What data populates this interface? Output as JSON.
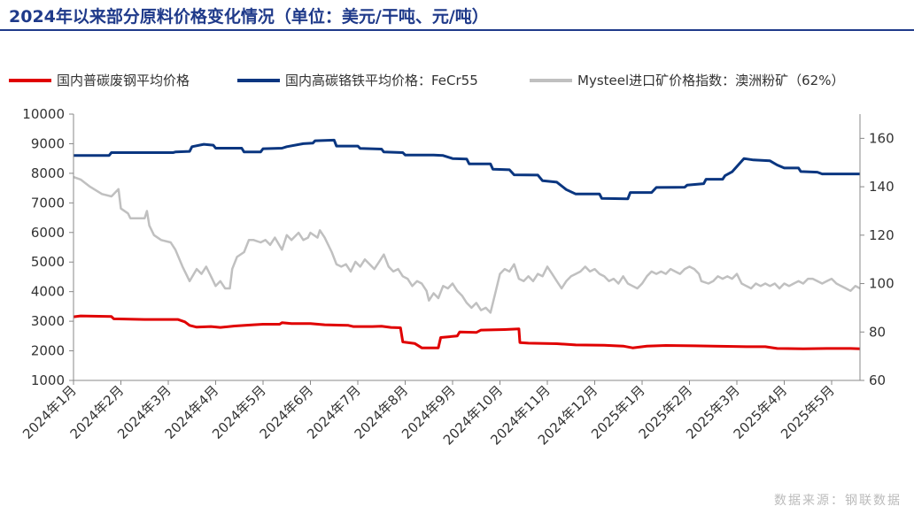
{
  "title": "2024年以来部分原料价格变化情况（单位：美元/干吨、元/吨）",
  "source": "数据来源：钢联数据",
  "chart_data": {
    "type": "line",
    "x_ticks": [
      "2024年1月",
      "2024年2月",
      "2024年3月",
      "2024年4月",
      "2024年5月",
      "2024年6月",
      "2024年7月",
      "2024年8月",
      "2024年9月",
      "2024年10月",
      "2024年11月",
      "2024年12月",
      "2025年1月",
      "2025年2月",
      "2025年3月",
      "2025年4月",
      "2025年5月"
    ],
    "x_range": [
      0,
      16.6
    ],
    "y_left": {
      "range": [
        1000,
        10000
      ],
      "ticks": [
        "1000",
        "2000",
        "3000",
        "4000",
        "5000",
        "6000",
        "7000",
        "8000",
        "9000",
        "10000"
      ]
    },
    "y_right": {
      "range": [
        60,
        170
      ],
      "ticks": [
        "60",
        "80",
        "100",
        "120",
        "140",
        "160"
      ]
    },
    "grid": false,
    "legend_position": "top",
    "series": [
      {
        "name": "国内普碳废钢平均价格",
        "axis": "left",
        "color": "#e00000",
        "points": [
          [
            0,
            3150
          ],
          [
            0.15,
            3180
          ],
          [
            0.8,
            3160
          ],
          [
            0.85,
            3080
          ],
          [
            1.5,
            3060
          ],
          [
            2.2,
            3060
          ],
          [
            2.35,
            2980
          ],
          [
            2.45,
            2860
          ],
          [
            2.6,
            2800
          ],
          [
            2.9,
            2820
          ],
          [
            3.1,
            2790
          ],
          [
            3.4,
            2840
          ],
          [
            3.8,
            2880
          ],
          [
            4.0,
            2900
          ],
          [
            4.35,
            2900
          ],
          [
            4.4,
            2950
          ],
          [
            4.6,
            2920
          ],
          [
            5.0,
            2920
          ],
          [
            5.3,
            2880
          ],
          [
            5.8,
            2860
          ],
          [
            5.9,
            2820
          ],
          [
            6.3,
            2820
          ],
          [
            6.5,
            2830
          ],
          [
            6.7,
            2790
          ],
          [
            6.9,
            2780
          ],
          [
            6.95,
            2300
          ],
          [
            7.2,
            2250
          ],
          [
            7.35,
            2100
          ],
          [
            7.7,
            2100
          ],
          [
            7.75,
            2450
          ],
          [
            8.1,
            2500
          ],
          [
            8.15,
            2640
          ],
          [
            8.5,
            2620
          ],
          [
            8.6,
            2700
          ],
          [
            9.1,
            2720
          ],
          [
            9.4,
            2740
          ],
          [
            9.42,
            2280
          ],
          [
            9.6,
            2260
          ],
          [
            10.2,
            2240
          ],
          [
            10.6,
            2200
          ],
          [
            11.2,
            2190
          ],
          [
            11.6,
            2160
          ],
          [
            11.8,
            2100
          ],
          [
            12.1,
            2160
          ],
          [
            12.5,
            2180
          ],
          [
            13.1,
            2170
          ],
          [
            13.5,
            2160
          ],
          [
            13.8,
            2150
          ],
          [
            14.2,
            2140
          ],
          [
            14.6,
            2140
          ],
          [
            14.85,
            2080
          ],
          [
            15.4,
            2070
          ],
          [
            15.9,
            2080
          ],
          [
            16.4,
            2080
          ],
          [
            16.6,
            2070
          ]
        ]
      },
      {
        "name": "国内高碳铬铁平均价格：FeCr55",
        "axis": "left",
        "color": "#0a3680",
        "points": [
          [
            0,
            8600
          ],
          [
            0.75,
            8600
          ],
          [
            0.8,
            8700
          ],
          [
            1.2,
            8700
          ],
          [
            2.1,
            8700
          ],
          [
            2.15,
            8720
          ],
          [
            2.45,
            8740
          ],
          [
            2.5,
            8900
          ],
          [
            2.75,
            8980
          ],
          [
            2.95,
            8950
          ],
          [
            3.0,
            8850
          ],
          [
            3.55,
            8850
          ],
          [
            3.6,
            8720
          ],
          [
            3.95,
            8720
          ],
          [
            4.0,
            8830
          ],
          [
            4.4,
            8850
          ],
          [
            4.5,
            8900
          ],
          [
            4.85,
            9000
          ],
          [
            5.05,
            9020
          ],
          [
            5.1,
            9100
          ],
          [
            5.5,
            9120
          ],
          [
            5.55,
            8920
          ],
          [
            6.0,
            8920
          ],
          [
            6.05,
            8840
          ],
          [
            6.5,
            8820
          ],
          [
            6.55,
            8720
          ],
          [
            6.95,
            8700
          ],
          [
            7.0,
            8620
          ],
          [
            7.6,
            8620
          ],
          [
            7.8,
            8600
          ],
          [
            8.0,
            8500
          ],
          [
            8.3,
            8480
          ],
          [
            8.35,
            8320
          ],
          [
            8.8,
            8320
          ],
          [
            8.85,
            8140
          ],
          [
            9.2,
            8120
          ],
          [
            9.3,
            7950
          ],
          [
            9.8,
            7940
          ],
          [
            9.9,
            7750
          ],
          [
            10.2,
            7700
          ],
          [
            10.4,
            7450
          ],
          [
            10.6,
            7300
          ],
          [
            11.1,
            7300
          ],
          [
            11.15,
            7150
          ],
          [
            11.7,
            7140
          ],
          [
            11.75,
            7350
          ],
          [
            12.2,
            7350
          ],
          [
            12.3,
            7520
          ],
          [
            12.9,
            7530
          ],
          [
            12.95,
            7600
          ],
          [
            13.3,
            7650
          ],
          [
            13.35,
            7800
          ],
          [
            13.7,
            7800
          ],
          [
            13.75,
            7920
          ],
          [
            13.9,
            8050
          ],
          [
            14.15,
            8500
          ],
          [
            14.35,
            8450
          ],
          [
            14.7,
            8420
          ],
          [
            14.85,
            8280
          ],
          [
            15.0,
            8180
          ],
          [
            15.3,
            8180
          ],
          [
            15.35,
            8060
          ],
          [
            15.7,
            8040
          ],
          [
            15.8,
            7980
          ],
          [
            16.6,
            7980
          ]
        ]
      },
      {
        "name": "Mysteel进口矿价格指数：澳洲粉矿（62%）",
        "axis": "right",
        "color": "#c0c0c0",
        "points": [
          [
            0,
            144
          ],
          [
            0.15,
            143
          ],
          [
            0.35,
            140
          ],
          [
            0.6,
            137
          ],
          [
            0.8,
            136
          ],
          [
            0.85,
            137
          ],
          [
            0.95,
            139
          ],
          [
            1.0,
            131
          ],
          [
            1.15,
            129
          ],
          [
            1.2,
            127
          ],
          [
            1.5,
            127
          ],
          [
            1.55,
            130
          ],
          [
            1.6,
            124
          ],
          [
            1.7,
            120
          ],
          [
            1.85,
            118
          ],
          [
            2.05,
            117
          ],
          [
            2.15,
            114
          ],
          [
            2.3,
            107
          ],
          [
            2.45,
            101
          ],
          [
            2.6,
            106
          ],
          [
            2.7,
            104
          ],
          [
            2.8,
            107
          ],
          [
            2.9,
            103
          ],
          [
            3.0,
            99
          ],
          [
            3.1,
            101
          ],
          [
            3.2,
            98
          ],
          [
            3.3,
            98
          ],
          [
            3.35,
            106
          ],
          [
            3.45,
            111
          ],
          [
            3.6,
            113
          ],
          [
            3.7,
            118
          ],
          [
            3.8,
            118
          ],
          [
            3.95,
            117
          ],
          [
            4.05,
            118
          ],
          [
            4.15,
            116
          ],
          [
            4.25,
            119
          ],
          [
            4.4,
            114
          ],
          [
            4.5,
            120
          ],
          [
            4.6,
            118
          ],
          [
            4.75,
            121
          ],
          [
            4.85,
            118
          ],
          [
            4.95,
            119
          ],
          [
            5.0,
            121
          ],
          [
            5.15,
            119
          ],
          [
            5.2,
            122
          ],
          [
            5.3,
            119
          ],
          [
            5.45,
            113
          ],
          [
            5.55,
            108
          ],
          [
            5.65,
            107
          ],
          [
            5.75,
            108
          ],
          [
            5.85,
            105
          ],
          [
            5.95,
            109
          ],
          [
            6.05,
            107
          ],
          [
            6.15,
            110
          ],
          [
            6.25,
            108
          ],
          [
            6.35,
            106
          ],
          [
            6.45,
            109
          ],
          [
            6.55,
            112
          ],
          [
            6.65,
            107
          ],
          [
            6.75,
            105
          ],
          [
            6.85,
            106
          ],
          [
            6.95,
            103
          ],
          [
            7.05,
            102
          ],
          [
            7.15,
            99
          ],
          [
            7.25,
            101
          ],
          [
            7.35,
            100
          ],
          [
            7.45,
            97
          ],
          [
            7.5,
            93
          ],
          [
            7.6,
            96
          ],
          [
            7.7,
            94
          ],
          [
            7.8,
            99
          ],
          [
            7.9,
            98
          ],
          [
            8.0,
            100
          ],
          [
            8.1,
            97
          ],
          [
            8.2,
            95
          ],
          [
            8.3,
            92
          ],
          [
            8.4,
            90
          ],
          [
            8.5,
            92
          ],
          [
            8.6,
            89
          ],
          [
            8.7,
            90
          ],
          [
            8.8,
            88
          ],
          [
            8.9,
            96
          ],
          [
            9.0,
            104
          ],
          [
            9.1,
            106
          ],
          [
            9.2,
            105
          ],
          [
            9.3,
            108
          ],
          [
            9.4,
            102
          ],
          [
            9.5,
            101
          ],
          [
            9.6,
            103
          ],
          [
            9.7,
            101
          ],
          [
            9.8,
            104
          ],
          [
            9.9,
            103
          ],
          [
            10.0,
            107
          ],
          [
            10.1,
            104
          ],
          [
            10.2,
            101
          ],
          [
            10.3,
            98
          ],
          [
            10.4,
            101
          ],
          [
            10.5,
            103
          ],
          [
            10.6,
            104
          ],
          [
            10.7,
            105
          ],
          [
            10.8,
            107
          ],
          [
            10.9,
            105
          ],
          [
            11.0,
            106
          ],
          [
            11.1,
            104
          ],
          [
            11.2,
            103
          ],
          [
            11.3,
            101
          ],
          [
            11.4,
            102
          ],
          [
            11.5,
            100
          ],
          [
            11.6,
            103
          ],
          [
            11.7,
            100
          ],
          [
            11.8,
            99
          ],
          [
            11.9,
            98
          ],
          [
            12.0,
            100
          ],
          [
            12.1,
            103
          ],
          [
            12.2,
            105
          ],
          [
            12.3,
            104
          ],
          [
            12.4,
            105
          ],
          [
            12.5,
            104
          ],
          [
            12.6,
            106
          ],
          [
            12.7,
            105
          ],
          [
            12.8,
            104
          ],
          [
            12.9,
            106
          ],
          [
            13.0,
            107
          ],
          [
            13.1,
            106
          ],
          [
            13.2,
            104
          ],
          [
            13.25,
            101
          ],
          [
            13.4,
            100
          ],
          [
            13.5,
            101
          ],
          [
            13.6,
            103
          ],
          [
            13.7,
            102
          ],
          [
            13.8,
            103
          ],
          [
            13.9,
            102
          ],
          [
            14.0,
            104
          ],
          [
            14.1,
            100
          ],
          [
            14.2,
            99
          ],
          [
            14.3,
            98
          ],
          [
            14.4,
            100
          ],
          [
            14.5,
            99
          ],
          [
            14.6,
            100
          ],
          [
            14.7,
            99
          ],
          [
            14.8,
            100
          ],
          [
            14.9,
            98
          ],
          [
            15.0,
            100
          ],
          [
            15.1,
            99
          ],
          [
            15.2,
            100
          ],
          [
            15.3,
            101
          ],
          [
            15.4,
            100
          ],
          [
            15.5,
            102
          ],
          [
            15.6,
            102
          ],
          [
            15.7,
            101
          ],
          [
            15.8,
            100
          ],
          [
            15.9,
            101
          ],
          [
            16.0,
            102
          ],
          [
            16.1,
            100
          ],
          [
            16.2,
            99
          ],
          [
            16.3,
            98
          ],
          [
            16.4,
            97
          ],
          [
            16.5,
            99
          ],
          [
            16.6,
            98
          ]
        ]
      }
    ]
  }
}
